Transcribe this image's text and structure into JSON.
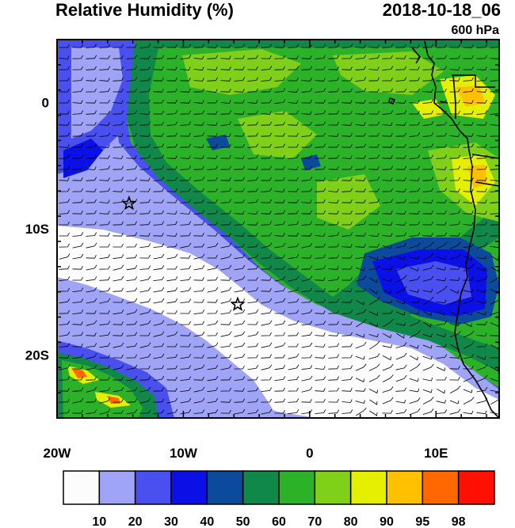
{
  "header": {
    "title": "Relative Humidity (%)",
    "datetime": "2018-10-18_06",
    "level": "600 hPa"
  },
  "map": {
    "variable": "relative humidity",
    "lon_range": [
      -20,
      15
    ],
    "lat_range": [
      -25,
      5
    ],
    "x_ticks": [
      {
        "value": -20,
        "label": "20W"
      },
      {
        "value": -10,
        "label": "10W"
      },
      {
        "value": 0,
        "label": "0"
      },
      {
        "value": 10,
        "label": "10E"
      }
    ],
    "y_ticks": [
      {
        "value": 0,
        "label": "0"
      },
      {
        "value": -10,
        "label": "10S"
      },
      {
        "value": -20,
        "label": "20S"
      }
    ],
    "markers": [
      {
        "name": "star-marker-north",
        "lon": -14.3,
        "lat": -8.0
      },
      {
        "name": "star-marker-south",
        "lon": -5.7,
        "lat": -16.0
      }
    ],
    "wind_barbs": true
  },
  "colorbar": {
    "labels": [
      "10",
      "20",
      "30",
      "40",
      "50",
      "60",
      "70",
      "80",
      "90",
      "95",
      "98"
    ],
    "colors": [
      "#fcfcfc",
      "#a0a4f6",
      "#4a50f0",
      "#0a10e6",
      "#0c4a9c",
      "#10884a",
      "#2cb228",
      "#80d01a",
      "#e4f000",
      "#ffc000",
      "#ff6800",
      "#ff1000"
    ]
  }
}
